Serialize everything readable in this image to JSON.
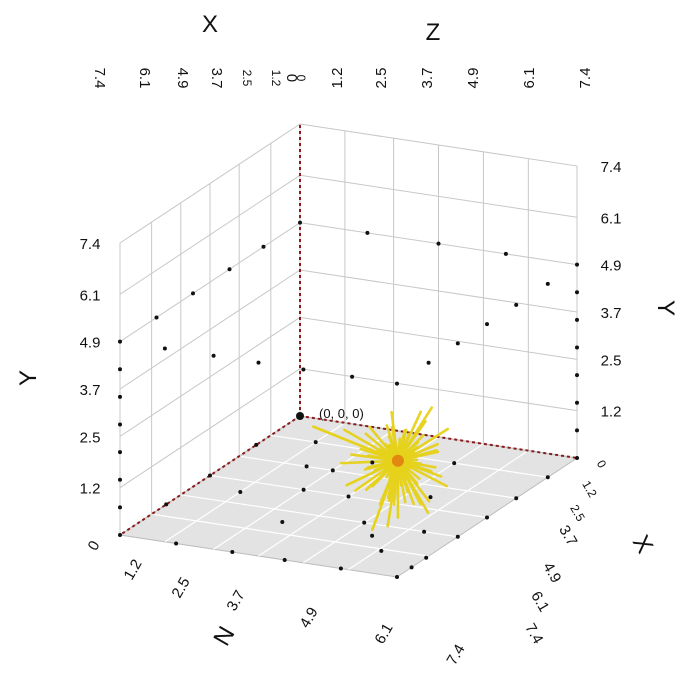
{
  "chart_data": {
    "type": "scatter",
    "dimensions": 3,
    "axes": {
      "x": {
        "title": "X",
        "ticks": [
          "0",
          "1.2",
          "2.5",
          "3.7",
          "4.9",
          "6.1",
          "7.4"
        ],
        "range": [
          0,
          7.4
        ]
      },
      "y": {
        "title": "Y",
        "ticks": [
          "1.2",
          "2.5",
          "3.7",
          "4.9",
          "6.1",
          "7.4"
        ],
        "range": [
          0,
          7.4
        ]
      },
      "z": {
        "title": "Z",
        "ticks": [
          "0",
          "1.2",
          "2.5",
          "3.7",
          "4.9",
          "6.1",
          "7.4"
        ],
        "range": [
          0,
          7.4
        ]
      },
      "n": {
        "title": "N",
        "ticks": [
          "0",
          "1.2",
          "2.5",
          "3.7",
          "4.9",
          "6.1",
          "7.4"
        ],
        "range": [
          0,
          7.4
        ]
      }
    },
    "origin_label": "(0, 0, 0)",
    "grid": true,
    "colors": {
      "points": "#111111",
      "axis_line": "#8b1a1a",
      "lines": "#e6d21a",
      "line_center": "#e07a10",
      "floor": "#e3e3e3",
      "wall": "#ffffff",
      "grid": "#c8c8c8"
    },
    "series": [
      {
        "points": [
          [
            0.0,
            4.9,
            7.4
          ],
          [
            1.2,
            4.9,
            7.4
          ],
          [
            2.5,
            4.9,
            7.4
          ],
          [
            3.7,
            4.9,
            7.4
          ],
          [
            4.9,
            4.9,
            7.4
          ],
          [
            6.1,
            4.9,
            7.4
          ],
          [
            7.4,
            4.9,
            7.4
          ],
          [
            7.4,
            4.9,
            6.2
          ],
          [
            7.4,
            4.9,
            4.9
          ],
          [
            7.4,
            4.9,
            3.7
          ],
          [
            7.4,
            4.9,
            2.5
          ],
          [
            7.4,
            4.9,
            1.2
          ],
          [
            7.4,
            4.9,
            0.0
          ],
          [
            5.9,
            4.9,
            0.0
          ],
          [
            4.4,
            4.9,
            0.0
          ],
          [
            2.9,
            4.9,
            0.0
          ],
          [
            1.5,
            4.9,
            0.0
          ],
          [
            0.0,
            4.9,
            0.0
          ],
          [
            0.0,
            4.9,
            1.8
          ],
          [
            0.0,
            4.9,
            3.7
          ],
          [
            0.0,
            4.9,
            5.5
          ],
          [
            0.0,
            4.2,
            7.4
          ],
          [
            0.0,
            3.5,
            7.4
          ],
          [
            0.0,
            2.8,
            7.4
          ],
          [
            0.0,
            2.1,
            7.4
          ],
          [
            0.0,
            1.4,
            7.4
          ],
          [
            0.0,
            0.7,
            7.4
          ],
          [
            0.0,
            0.0,
            7.4
          ],
          [
            1.2,
            0.0,
            7.4
          ],
          [
            2.5,
            0.0,
            7.4
          ],
          [
            3.7,
            0.0,
            7.4
          ],
          [
            4.9,
            0.0,
            7.4
          ],
          [
            7.4,
            4.2,
            0.0
          ],
          [
            7.4,
            3.5,
            0.0
          ],
          [
            7.4,
            2.8,
            0.0
          ],
          [
            7.4,
            2.1,
            0.0
          ],
          [
            7.4,
            1.4,
            0.0
          ],
          [
            7.4,
            0.7,
            0.0
          ],
          [
            7.4,
            0.0,
            0.0
          ],
          [
            5.5,
            0.0,
            0.0
          ],
          [
            3.7,
            0.0,
            0.0
          ],
          [
            1.8,
            0.0,
            0.0
          ],
          [
            0.0,
            0.0,
            0.0
          ],
          [
            7.4,
            0.0,
            1.5
          ],
          [
            7.4,
            0.0,
            3.0
          ],
          [
            7.4,
            0.0,
            4.4
          ],
          [
            7.4,
            0.0,
            5.9
          ],
          [
            7.4,
            0.0,
            7.4
          ],
          [
            6.8,
            0.0,
            7.4
          ],
          [
            6.2,
            0.0,
            7.4
          ],
          [
            6.2,
            0.0,
            6.2
          ],
          [
            4.9,
            0.0,
            4.9
          ],
          [
            3.7,
            0.0,
            3.7
          ],
          [
            2.5,
            0.0,
            2.5
          ],
          [
            1.2,
            0.0,
            1.2
          ],
          [
            2.5,
            0.0,
            1.8
          ],
          [
            3.7,
            0.0,
            2.5
          ],
          [
            5.5,
            0.0,
            3.1
          ],
          [
            1.8,
            0.0,
            3.1
          ],
          [
            4.3,
            0.0,
            1.2
          ],
          [
            3.1,
            0.0,
            5.5
          ],
          [
            5.5,
            0.0,
            5.5
          ],
          [
            1.2,
            0.0,
            4.9
          ],
          [
            4.9,
            0.0,
            6.5
          ]
        ]
      }
    ],
    "line_cluster": {
      "center": [
        6.9,
        2.7,
        7.1
      ],
      "count": 34
    }
  }
}
